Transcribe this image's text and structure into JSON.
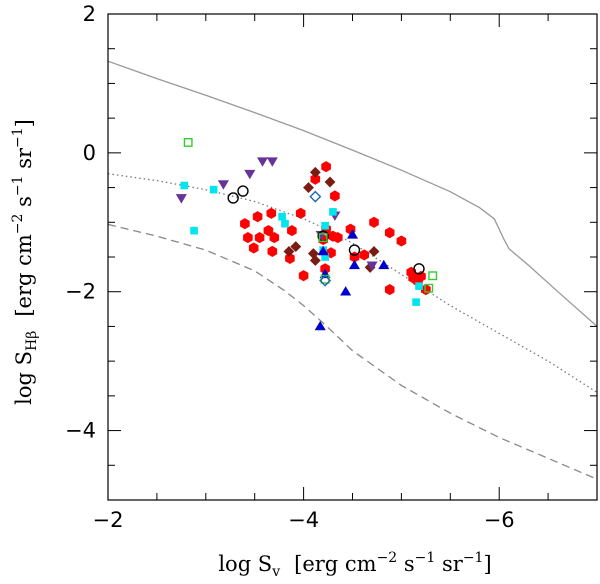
{
  "chart_data": {
    "type": "scatter",
    "title": "",
    "xlabel": "log S_v  [erg cm^-2 s^-1 sr^-1]",
    "ylabel": "log S_Hβ  [erg cm^-2 s^-1 sr^-1]",
    "xlabel_parts": {
      "prefix": "log S",
      "sub": "v",
      "units": "[erg cm",
      "e1": "−2",
      "s": " s",
      "e2": "−1",
      "sr": " sr",
      "e3": "−1",
      "close": "]"
    },
    "ylabel_parts": {
      "prefix": "log S",
      "sub": "Hβ",
      "units": "[erg cm",
      "e1": "−2",
      "s": " s",
      "e2": "−1",
      "sr": " sr",
      "e3": "−1",
      "close": "]"
    },
    "xlim": [
      -2,
      -7
    ],
    "ylim": [
      -5,
      2
    ],
    "x_ticks": [
      {
        "value": -2,
        "label": "−2"
      },
      {
        "value": -4,
        "label": "−4"
      },
      {
        "value": -6,
        "label": "−6"
      }
    ],
    "y_ticks": [
      {
        "value": 2,
        "label": "2"
      },
      {
        "value": 0,
        "label": "0"
      },
      {
        "value": -2,
        "label": "−2"
      },
      {
        "value": -4,
        "label": "−4"
      }
    ],
    "x_minor_step": 0.5,
    "y_minor_step": 0.5,
    "curves": [
      {
        "name": "solid",
        "style": "solid",
        "color": "#999999",
        "x": [
          -2.0,
          -2.5,
          -3.0,
          -3.5,
          -4.0,
          -4.5,
          -5.0,
          -5.5,
          -5.8,
          -5.95,
          -6.05,
          -6.1,
          -6.3,
          -6.6,
          -7.0
        ],
        "y": [
          1.32,
          1.07,
          0.83,
          0.58,
          0.32,
          0.04,
          -0.25,
          -0.56,
          -0.79,
          -0.95,
          -1.25,
          -1.38,
          -1.62,
          -2.0,
          -2.5
        ]
      },
      {
        "name": "dotted",
        "style": "dotted",
        "color": "#777777",
        "x": [
          -2.0,
          -2.5,
          -3.0,
          -3.5,
          -4.0,
          -4.2,
          -4.5,
          -5.0,
          -5.5,
          -6.0,
          -6.5,
          -7.0
        ],
        "y": [
          -0.3,
          -0.4,
          -0.53,
          -0.7,
          -0.95,
          -1.08,
          -1.3,
          -1.75,
          -2.2,
          -2.6,
          -3.0,
          -3.45
        ]
      },
      {
        "name": "dashed",
        "style": "dashed",
        "color": "#888888",
        "x": [
          -2.0,
          -2.5,
          -3.0,
          -3.5,
          -3.8,
          -4.0,
          -4.2,
          -4.5,
          -5.0,
          -5.5,
          -6.0,
          -6.5,
          -7.0
        ],
        "y": [
          -1.03,
          -1.2,
          -1.4,
          -1.7,
          -1.98,
          -2.2,
          -2.45,
          -2.85,
          -3.35,
          -3.75,
          -4.1,
          -4.4,
          -4.7
        ]
      }
    ],
    "series": [
      {
        "name": "red-hexagons",
        "marker": "hexagon",
        "color": "#ff0000",
        "filled": true,
        "points": [
          [
            -4.12,
            -0.38
          ],
          [
            -4.23,
            -0.2
          ],
          [
            -4.32,
            -0.62
          ],
          [
            -3.97,
            -0.87
          ],
          [
            -3.67,
            -0.87
          ],
          [
            -3.53,
            -0.92
          ],
          [
            -3.4,
            -1.02
          ],
          [
            -3.64,
            -1.12
          ],
          [
            -3.88,
            -1.12
          ],
          [
            -3.7,
            -1.22
          ],
          [
            -3.55,
            -1.22
          ],
          [
            -3.43,
            -1.22
          ],
          [
            -3.49,
            -1.37
          ],
          [
            -3.68,
            -1.42
          ],
          [
            -3.86,
            -1.52
          ],
          [
            -4.0,
            -1.77
          ],
          [
            -4.22,
            -1.67
          ],
          [
            -4.3,
            -1.2
          ],
          [
            -4.2,
            -1.25
          ],
          [
            -4.35,
            -1.22
          ],
          [
            -4.48,
            -1.1
          ],
          [
            -4.72,
            -1.0
          ],
          [
            -4.88,
            -1.15
          ],
          [
            -5.0,
            -1.27
          ],
          [
            -5.1,
            -1.72
          ],
          [
            -5.12,
            -1.8
          ],
          [
            -5.17,
            -1.85
          ],
          [
            -5.2,
            -1.78
          ],
          [
            -5.25,
            -1.97
          ],
          [
            -4.88,
            -1.97
          ],
          [
            -4.62,
            -1.47
          ],
          [
            -4.52,
            -1.5
          ],
          [
            -4.23,
            -1.1
          ],
          [
            -4.28,
            -1.44
          ]
        ]
      },
      {
        "name": "darkred-diamonds",
        "marker": "diamond",
        "color": "#7b1c14",
        "filled": true,
        "points": [
          [
            -4.12,
            -0.28
          ],
          [
            -4.05,
            -0.5
          ],
          [
            -4.27,
            -0.42
          ],
          [
            -3.92,
            -1.35
          ],
          [
            -3.85,
            -1.42
          ],
          [
            -4.12,
            -1.55
          ],
          [
            -4.1,
            -1.45
          ],
          [
            -4.72,
            -1.42
          ],
          [
            -4.68,
            -1.65
          ]
        ]
      },
      {
        "name": "purple-down-triangles",
        "marker": "triangle-down",
        "color": "#663399",
        "filled": true,
        "points": [
          [
            -3.58,
            -0.12
          ],
          [
            -3.68,
            -0.12
          ],
          [
            -3.45,
            -0.3
          ],
          [
            -3.18,
            -0.45
          ],
          [
            -2.75,
            -0.65
          ],
          [
            -4.32,
            -0.9
          ],
          [
            -4.18,
            -1.18
          ],
          [
            -4.7,
            -1.62
          ]
        ]
      },
      {
        "name": "cyan-squares",
        "marker": "square",
        "color": "#00e5ee",
        "filled": true,
        "points": [
          [
            -2.78,
            -0.47
          ],
          [
            -3.08,
            -0.53
          ],
          [
            -2.88,
            -1.12
          ],
          [
            -3.78,
            -0.92
          ],
          [
            -3.81,
            -1.02
          ],
          [
            -4.22,
            -1.05
          ],
          [
            -4.3,
            -0.85
          ],
          [
            -4.2,
            -1.4
          ],
          [
            -4.22,
            -1.5
          ],
          [
            -5.15,
            -2.15
          ],
          [
            -5.18,
            -1.92
          ]
        ]
      },
      {
        "name": "blue-up-triangles",
        "marker": "triangle-up",
        "color": "#0000cc",
        "filled": true,
        "points": [
          [
            -4.2,
            -1.42
          ],
          [
            -4.17,
            -2.5
          ],
          [
            -4.43,
            -2.0
          ],
          [
            -4.52,
            -1.62
          ],
          [
            -4.5,
            -1.18
          ],
          [
            -4.82,
            -1.62
          ],
          [
            -4.22,
            -1.75
          ]
        ]
      },
      {
        "name": "black-open-circles",
        "marker": "circle",
        "color": "#000000",
        "filled": false,
        "points": [
          [
            -3.28,
            -0.65
          ],
          [
            -3.38,
            -0.55
          ],
          [
            -4.52,
            -1.4
          ],
          [
            -5.18,
            -1.67
          ],
          [
            -4.2,
            -1.2
          ]
        ]
      },
      {
        "name": "green-open-squares",
        "marker": "square",
        "color": "#33cc33",
        "filled": false,
        "points": [
          [
            -2.82,
            0.15
          ],
          [
            -4.2,
            -1.22
          ],
          [
            -4.22,
            -1.82
          ],
          [
            -5.32,
            -1.77
          ],
          [
            -5.28,
            -1.95
          ]
        ]
      },
      {
        "name": "blue-open-diamonds",
        "marker": "diamond",
        "color": "#2266aa",
        "filled": false,
        "points": [
          [
            -4.12,
            -0.63
          ],
          [
            -4.22,
            -1.84
          ]
        ]
      }
    ]
  }
}
